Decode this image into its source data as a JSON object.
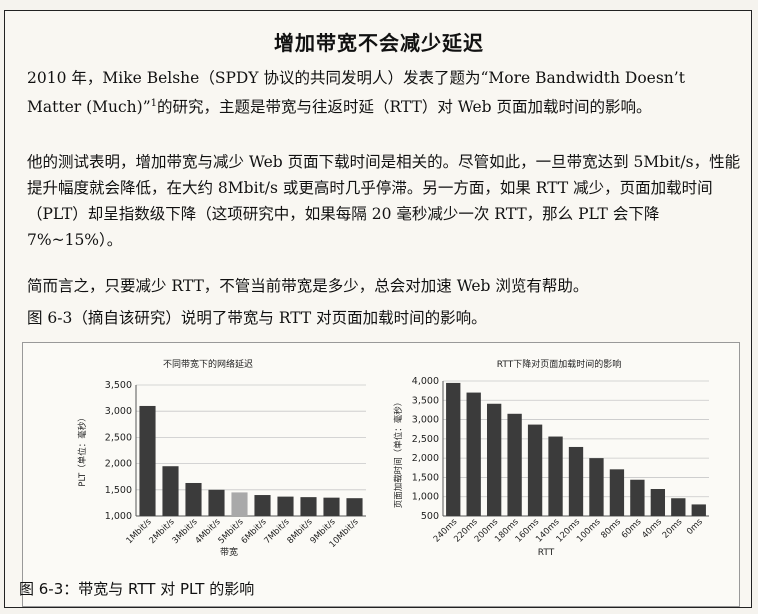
{
  "sidebar": {
    "title": "增加带宽不会减少延迟",
    "paragraphs": [
      {
        "before_note": "2010 年，Mike Belshe（SPDY 协议的共同发明人）发表了题为“More Bandwidth Doesn’t Matter (Much)”",
        "footnote_mark": "1",
        "after_note": "的研究，主题是带宽与往返时延（RTT）对 Web 页面加载时间的影响。"
      },
      {
        "text": "他的测试表明，增加带宽与减少 Web 页面下载时间是相关的。尽管如此，一旦带宽达到 5Mbit/s，性能提升幅度就会降低，在大约 8Mbit/s 或更高时几乎停滞。另一方面，如果 RTT 减少，页面加载时间（PLT）却呈指数级下降（这项研究中，如果每隔 20 毫秒减少一次 RTT，那么 PLT 会下降 7%~15%）。"
      },
      {
        "text": "简而言之，只要减少 RTT，不管当前带宽是多少，总会对加速 Web 浏览有帮助。"
      },
      {
        "text": "图 6-3（摘自该研究）说明了带宽与 RTT 对页面加载时间的影响。"
      }
    ]
  },
  "figure_caption": "图 6-3：带宽与 RTT 对 PLT 的影响",
  "colors": {
    "bar": "#3b3b3b",
    "highlight_bar": "#a9a9a9",
    "grid": "#c8c8c8",
    "axis": "#555555"
  },
  "chart_data": [
    {
      "type": "bar",
      "title": "不同带宽下的网络延迟",
      "xlabel": "带宽",
      "ylabel": "PLT（单位：毫秒）",
      "categories": [
        "1Mbit/s",
        "2Mbit/s",
        "3Mbit/s",
        "4Mbit/s",
        "5Mbit/s",
        "6Mbit/s",
        "7Mbit/s",
        "8Mbit/s",
        "9Mbit/s",
        "10Mbit/s"
      ],
      "values": [
        3100,
        1950,
        1630,
        1500,
        1450,
        1400,
        1370,
        1360,
        1350,
        1340
      ],
      "highlight_category": "5Mbit/s",
      "ylim": [
        1000,
        3500
      ],
      "yticks": [
        1000,
        1500,
        2000,
        2500,
        3000,
        3500
      ],
      "ytick_labels": [
        "1,000",
        "1,500",
        "2,000",
        "2,500",
        "3,000",
        "3,500"
      ],
      "grid": true
    },
    {
      "type": "bar",
      "title": "RTT下降对页面加载时间的影响",
      "xlabel": "RTT",
      "ylabel": "页面加载时间（单位：毫秒）",
      "categories": [
        "240ms",
        "220ms",
        "200ms",
        "180ms",
        "160ms",
        "140ms",
        "120ms",
        "100ms",
        "80ms",
        "60ms",
        "40ms",
        "20ms",
        "0ms"
      ],
      "values": [
        3950,
        3700,
        3410,
        3150,
        2870,
        2560,
        2290,
        2000,
        1710,
        1440,
        1200,
        960,
        800
      ],
      "ylim": [
        500,
        4000
      ],
      "yticks": [
        500,
        1000,
        1500,
        2000,
        2500,
        3000,
        3500,
        4000
      ],
      "ytick_labels": [
        "500",
        "1,000",
        "1,500",
        "2,000",
        "2,500",
        "3,000",
        "3,500",
        "4,000"
      ],
      "grid": true
    }
  ]
}
